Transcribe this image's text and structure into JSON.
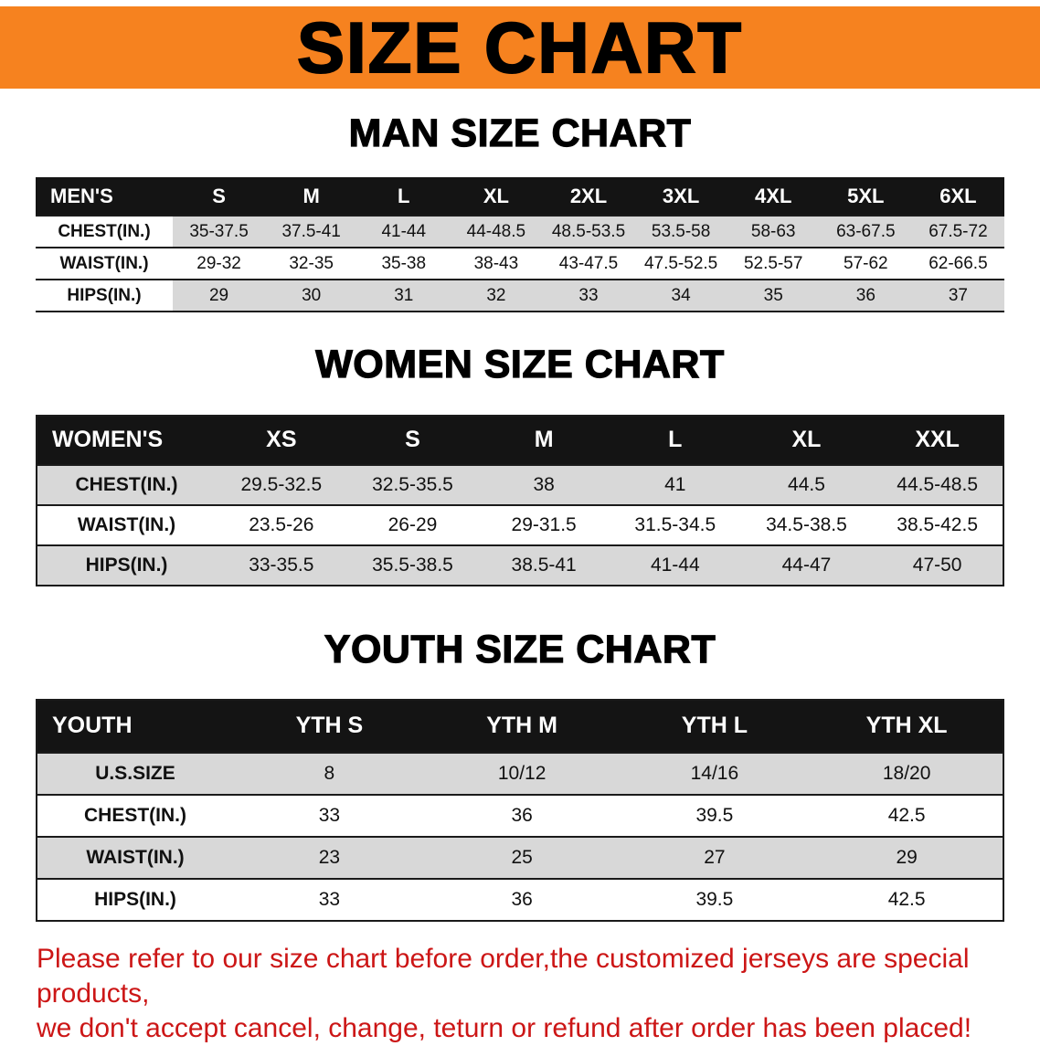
{
  "banner": {
    "title": "SIZE CHART"
  },
  "men": {
    "heading": "MAN SIZE CHART",
    "label": "MEN'S",
    "columns": [
      "S",
      "M",
      "L",
      "XL",
      "2XL",
      "3XL",
      "4XL",
      "5XL",
      "6XL"
    ],
    "rows": [
      {
        "label": "CHEST(IN.)",
        "values": [
          "35-37.5",
          "37.5-41",
          "41-44",
          "44-48.5",
          "48.5-53.5",
          "53.5-58",
          "58-63",
          "63-67.5",
          "67.5-72"
        ]
      },
      {
        "label": "WAIST(IN.)",
        "values": [
          "29-32",
          "32-35",
          "35-38",
          "38-43",
          "43-47.5",
          "47.5-52.5",
          "52.5-57",
          "57-62",
          "62-66.5"
        ]
      },
      {
        "label": "HIPS(IN.)",
        "values": [
          "29",
          "30",
          "31",
          "32",
          "33",
          "34",
          "35",
          "36",
          "37"
        ]
      }
    ]
  },
  "women": {
    "heading": "WOMEN SIZE CHART",
    "label": "WOMEN'S",
    "columns": [
      "XS",
      "S",
      "M",
      "L",
      "XL",
      "XXL"
    ],
    "rows": [
      {
        "label": "CHEST(IN.)",
        "values": [
          "29.5-32.5",
          "32.5-35.5",
          "38",
          "41",
          "44.5",
          "44.5-48.5"
        ]
      },
      {
        "label": "WAIST(IN.)",
        "values": [
          "23.5-26",
          "26-29",
          "29-31.5",
          "31.5-34.5",
          "34.5-38.5",
          "38.5-42.5"
        ]
      },
      {
        "label": "HIPS(IN.)",
        "values": [
          "33-35.5",
          "35.5-38.5",
          "38.5-41",
          "41-44",
          "44-47",
          "47-50"
        ]
      }
    ]
  },
  "youth": {
    "heading": "YOUTH SIZE CHART",
    "label": "YOUTH",
    "columns": [
      "YTH S",
      "YTH M",
      "YTH L",
      "YTH XL"
    ],
    "rows": [
      {
        "label": "U.S.SIZE",
        "values": [
          "8",
          "10/12",
          "14/16",
          "18/20"
        ]
      },
      {
        "label": "CHEST(IN.)",
        "values": [
          "33",
          "36",
          "39.5",
          "42.5"
        ]
      },
      {
        "label": "WAIST(IN.)",
        "values": [
          "23",
          "25",
          "27",
          "29"
        ]
      },
      {
        "label": "HIPS(IN.)",
        "values": [
          "33",
          "36",
          "39.5",
          "42.5"
        ]
      }
    ]
  },
  "disclaimer": {
    "line1": "Please refer to our size chart before order,the customized jerseys are special products,",
    "line2": "we don't accept cancel, change, teturn or refund after order has been placed!"
  },
  "colors": {
    "banner_bg": "#f6821f",
    "header_bg": "#141414",
    "stripe_bg": "#d8d8d8",
    "disclaimer_red": "#cc1616"
  }
}
